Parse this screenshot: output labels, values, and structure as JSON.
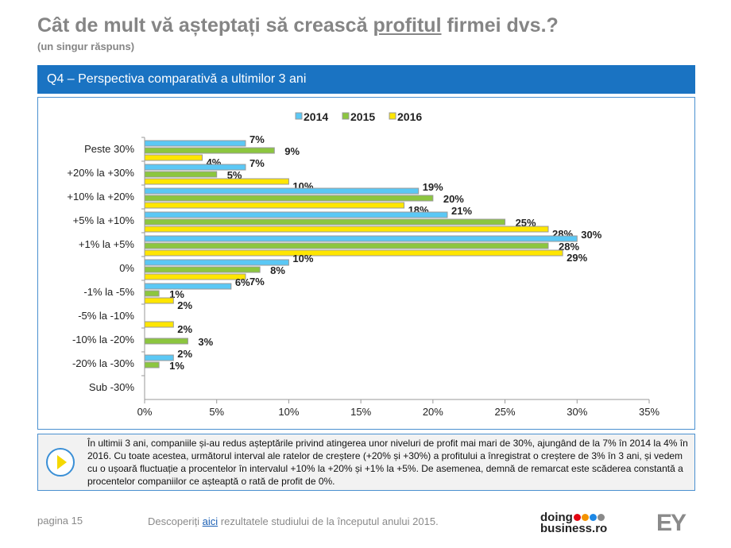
{
  "header": {
    "title_pre": "Cât de mult vă așteptați să crească ",
    "title_underlined": "profitul",
    "title_post": " firmei dvs.?",
    "subtitle": "(un singur răspuns)",
    "question": "Q4 – Perspectiva comparativă a ultimilor 3 ani"
  },
  "chart_data": {
    "type": "bar",
    "orientation": "horizontal",
    "categories": [
      "Peste 30%",
      "+20% la +30%",
      "+10% la +20%",
      "+5% la +10%",
      "+1% la +5%",
      "0%",
      "-1% la -5%",
      "-5% la -10%",
      "-10% la -20%",
      "-20% la -30%",
      "Sub -30%"
    ],
    "series": [
      {
        "name": "2014",
        "color": "#5bc8f5",
        "values": [
          7,
          7,
          19,
          21,
          30,
          10,
          6,
          null,
          null,
          2,
          null
        ]
      },
      {
        "name": "2015",
        "color": "#8cc63f",
        "values": [
          9,
          5,
          20,
          25,
          28,
          8,
          1,
          null,
          3,
          1,
          null
        ]
      },
      {
        "name": "2016",
        "color": "#ffe600",
        "values": [
          4,
          10,
          18,
          28,
          29,
          7,
          2,
          2,
          null,
          null,
          null
        ]
      }
    ],
    "xlim": [
      0,
      35
    ],
    "xticks": [
      "0%",
      "5%",
      "10%",
      "15%",
      "20%",
      "25%",
      "30%",
      "35%"
    ],
    "legend": "top",
    "grid": false
  },
  "summary": {
    "text": "În ultimii 3 ani, companiile și-au redus așteptările privind atingerea unor niveluri de profit mai mari de 30%, ajungând de la 7% în 2014 la 4% în 2016. Cu toate acestea, următorul interval ale ratelor de creștere (+20% și +30%) a profitului a înregistrat o creștere de 3% în 3 ani, și vedem cu o ușoară fluctuație a procentelor în intervalul +10% la +20% și +1% la +5%. De asemenea, demnă de remarcat este scăderea constantă a procentelor companiilor ce așteaptă o rată de profit de 0%."
  },
  "footer": {
    "page": "pagina 15",
    "note_pre": "Descoperiți ",
    "note_link": "aici",
    "note_post": " rezultatele studiului de la începutul anului 2015.",
    "logo1": "doing business.ro",
    "logo2": "EY",
    "logo_dots": [
      "#e30613",
      "#f39200",
      "#1e88e5",
      "#8a8a8a"
    ]
  }
}
